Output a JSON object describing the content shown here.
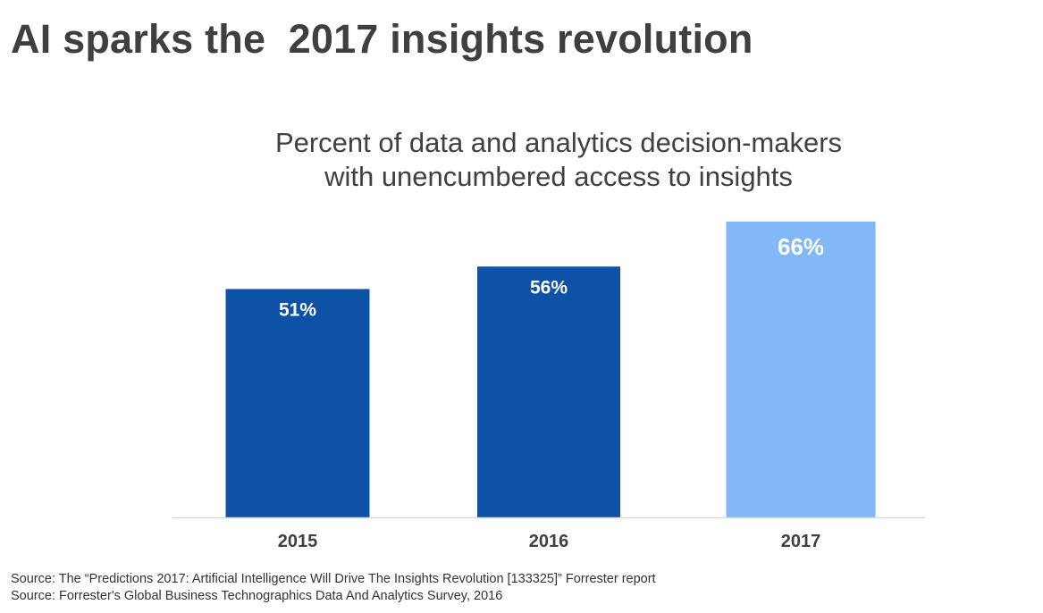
{
  "page": {
    "title": "AI sparks the  2017 insights revolution"
  },
  "chart_data": {
    "type": "bar",
    "title_lines": [
      "Percent of data and analytics decision-makers",
      "with unencumbered access to insights"
    ],
    "categories": [
      "2015",
      "2016",
      "2017"
    ],
    "values": [
      51,
      56,
      66
    ],
    "value_labels": [
      "51%",
      "56%",
      "66%"
    ],
    "value_suffix": "%",
    "xlabel": "",
    "ylabel": "",
    "ylim": [
      0,
      66
    ],
    "grid": false,
    "bar_colors": [
      "#0e52a7",
      "#0e52a7",
      "#82b8f7"
    ],
    "label_color": "#ffffff",
    "axis_color": "#d9d9d9"
  },
  "sources": [
    "Source: The “Predictions 2017: Artificial Intelligence Will Drive The Insights Revolution [133325]” Forrester report",
    "Source: Forrester's Global Business Technographics Data And Analytics Survey, 2016"
  ]
}
